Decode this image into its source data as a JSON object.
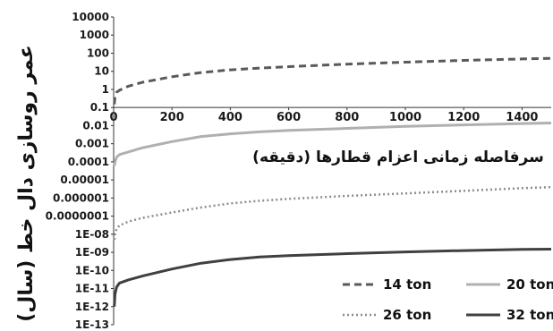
{
  "chart_data": {
    "type": "line",
    "title": "",
    "xlabel": "سرفاصله زمانی اعزام قطارها (دقیقه)",
    "ylabel": "عمر روسازی دال خط (سال)",
    "y_scale": "log",
    "xlim": [
      0,
      1500
    ],
    "ylim": [
      1e-13,
      10000
    ],
    "grid": false,
    "legend_position": "bottom-right",
    "x_ticks": [
      "0",
      "200",
      "400",
      "600",
      "800",
      "1000",
      "1200",
      "1400"
    ],
    "y_ticks": [
      "10000",
      "1000",
      "100",
      "10",
      "1",
      "0.1",
      "0.01",
      "0.001",
      "0.0001",
      "0.00001",
      "0.000001",
      "0.0000001",
      "1E-08",
      "1E-09",
      "1E-10",
      "1E-11",
      "1E-12",
      "1E-13"
    ],
    "x": [
      2,
      5,
      10,
      20,
      50,
      100,
      200,
      300,
      400,
      500,
      600,
      800,
      1000,
      1200,
      1400,
      1500
    ],
    "series": [
      {
        "name": "14 ton",
        "color": "#5a5a5a",
        "style": "dashed",
        "values": [
          0.15,
          0.4,
          0.7,
          0.9,
          1.5,
          2.5,
          5,
          8.5,
          12,
          15,
          18,
          25,
          32,
          40,
          48,
          52
        ]
      },
      {
        "name": "20 ton",
        "color": "#b0b0b0",
        "style": "solid",
        "values": [
          6e-05,
          0.0001,
          0.00018,
          0.00025,
          0.00035,
          0.0006,
          0.0013,
          0.0025,
          0.0035,
          0.0045,
          0.0055,
          0.007,
          0.009,
          0.011,
          0.013,
          0.014
        ]
      },
      {
        "name": "26 ton",
        "color": "#8c8c8c",
        "style": "dotted",
        "values": [
          5e-09,
          1e-08,
          2e-08,
          3e-08,
          5e-08,
          8e-08,
          1.6e-07,
          3e-07,
          5e-07,
          7e-07,
          9e-07,
          1.3e-06,
          1.8e-06,
          2.5e-06,
          3.5e-06,
          4e-06
        ]
      },
      {
        "name": "32 ton",
        "color": "#404040",
        "style": "solid",
        "values": [
          1e-12,
          5e-12,
          1.2e-11,
          2e-11,
          3e-11,
          5e-11,
          1.2e-10,
          2.5e-10,
          4e-10,
          5.5e-10,
          6.5e-10,
          8.5e-10,
          1.05e-09,
          1.25e-09,
          1.45e-09,
          1.5e-09
        ]
      }
    ]
  }
}
